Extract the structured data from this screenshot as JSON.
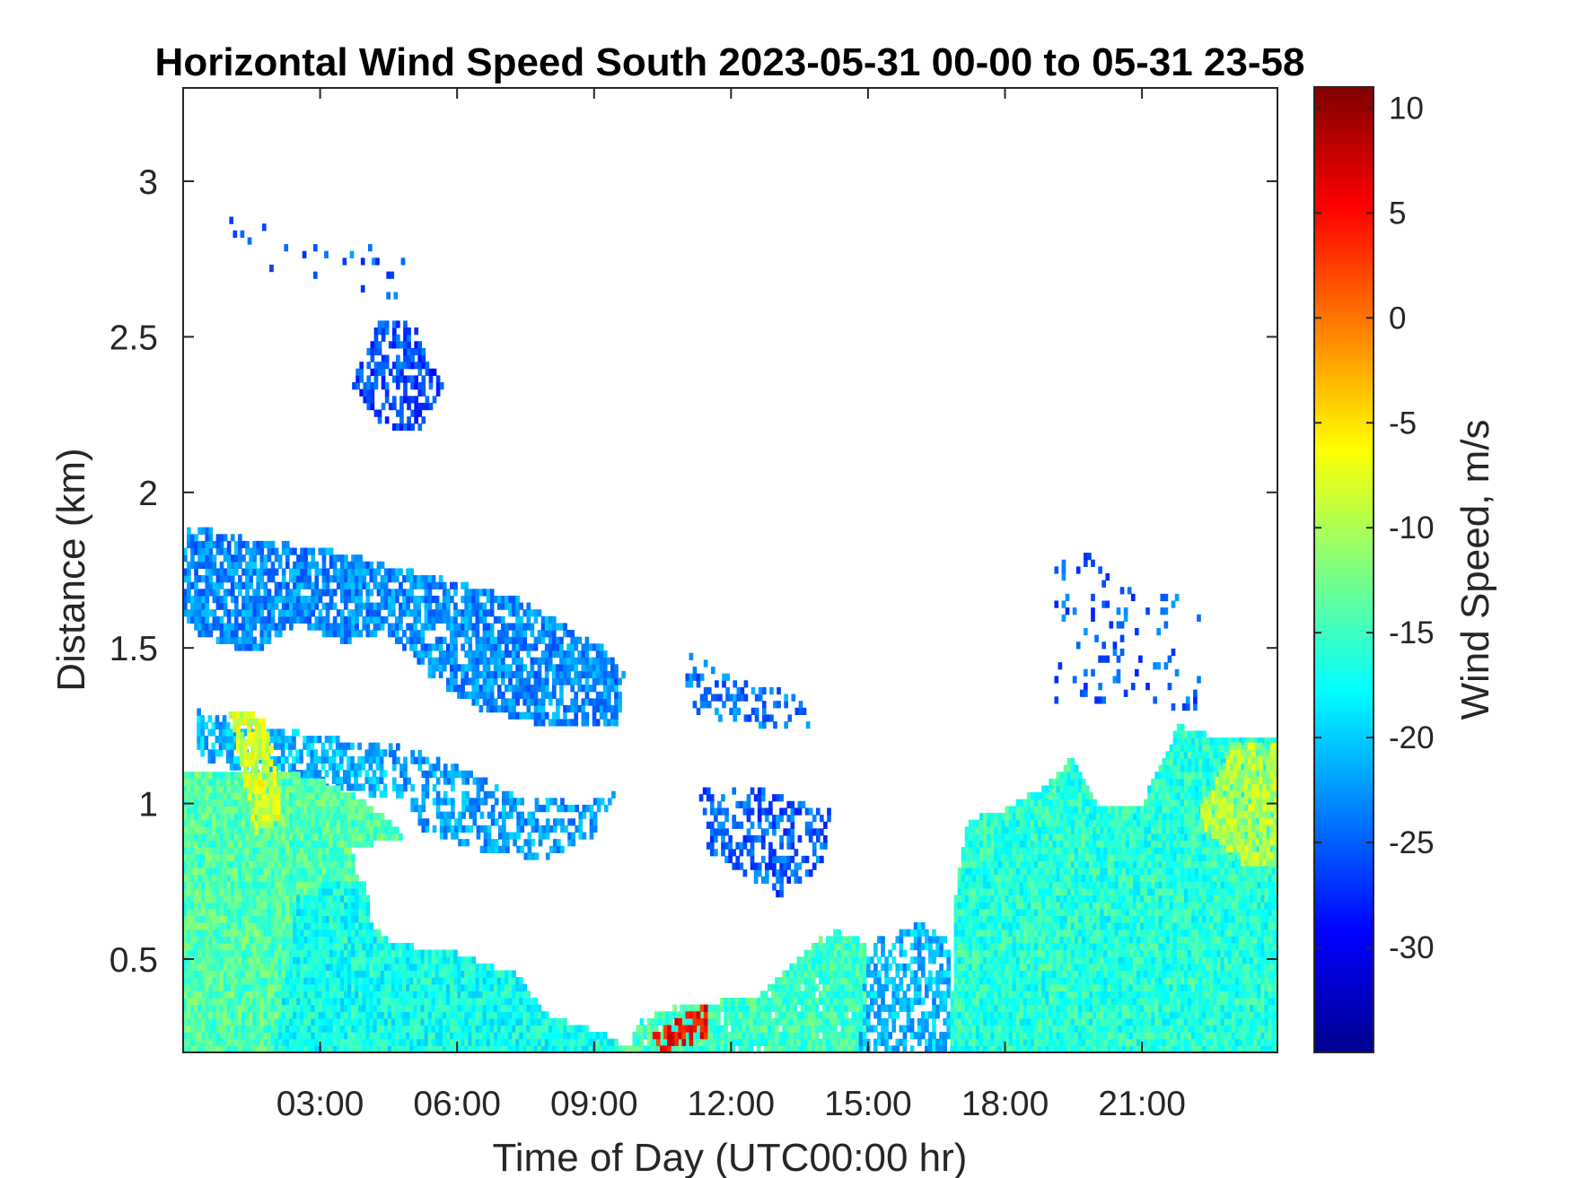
{
  "chart_data": {
    "type": "heatmap",
    "title": "Horizontal Wind Speed South 2023-05-31 00-00 to 05-31 23-58",
    "xlabel": "Time of Day (UTC00:00 hr)",
    "ylabel": "Distance (km)",
    "xlim": [
      "2023-05-31 00:00",
      "2023-05-31 23:58"
    ],
    "ylim": [
      0.2,
      3.3
    ],
    "x_ticks": [
      "03:00",
      "06:00",
      "09:00",
      "12:00",
      "15:00",
      "18:00",
      "21:00"
    ],
    "x_tick_hours": [
      3,
      6,
      9,
      12,
      15,
      18,
      21
    ],
    "y_ticks": [
      "0.5",
      "1",
      "1.5",
      "2",
      "2.5",
      "3"
    ],
    "y_tick_values": [
      0.5,
      1,
      1.5,
      2,
      2.5,
      3
    ],
    "colormap": "jet",
    "colorbar": {
      "label": "Wind Speed, m/s",
      "clim": [
        -35,
        11
      ],
      "ticks": [
        "10",
        "5",
        "0",
        "-5",
        "-10",
        "-15",
        "-20",
        "-25",
        "-30"
      ],
      "tick_values": [
        10,
        5,
        0,
        -5,
        -10,
        -15,
        -20,
        -25,
        -30
      ]
    },
    "regions": [
      {
        "name": "upper-scatter-0000-0500",
        "value": -25,
        "density": 0.06,
        "poly": [
          [
            0.05,
            3.0
          ],
          [
            1.0,
            2.9
          ],
          [
            2.2,
            2.85
          ],
          [
            3.2,
            2.8
          ],
          [
            5.0,
            2.8
          ],
          [
            5.2,
            2.65
          ],
          [
            4.5,
            2.6
          ],
          [
            2.0,
            2.7
          ],
          [
            0.5,
            2.85
          ],
          [
            0.05,
            2.9
          ]
        ]
      },
      {
        "name": "cloud-2.4km-0400",
        "value": -26,
        "density": 0.55,
        "poly": [
          [
            3.7,
            2.35
          ],
          [
            4.3,
            2.55
          ],
          [
            5.0,
            2.55
          ],
          [
            5.7,
            2.35
          ],
          [
            5.2,
            2.2
          ],
          [
            4.4,
            2.2
          ]
        ]
      },
      {
        "name": "layer-1.6km-0000-0940",
        "value": -23,
        "density": 0.78,
        "poly": [
          [
            0.0,
            1.9
          ],
          [
            1.5,
            1.85
          ],
          [
            3.0,
            1.82
          ],
          [
            5.0,
            1.75
          ],
          [
            7.5,
            1.65
          ],
          [
            9.2,
            1.5
          ],
          [
            9.7,
            1.42
          ],
          [
            9.5,
            1.25
          ],
          [
            8.0,
            1.25
          ],
          [
            6.5,
            1.3
          ],
          [
            5.5,
            1.4
          ],
          [
            4.5,
            1.55
          ],
          [
            3.5,
            1.52
          ],
          [
            2.5,
            1.58
          ],
          [
            1.5,
            1.48
          ],
          [
            0.3,
            1.55
          ],
          [
            0.0,
            1.6
          ]
        ]
      },
      {
        "name": "band-1.1km-0430-0930",
        "value": -22,
        "density": 0.55,
        "poly": [
          [
            4.5,
            1.2
          ],
          [
            6.0,
            1.12
          ],
          [
            7.5,
            1.02
          ],
          [
            8.8,
            1.0
          ],
          [
            9.5,
            1.05
          ],
          [
            9.0,
            0.9
          ],
          [
            8.0,
            0.82
          ],
          [
            6.5,
            0.85
          ],
          [
            5.2,
            0.92
          ],
          [
            4.6,
            1.05
          ]
        ]
      },
      {
        "name": "band-1.1km-0000-0430",
        "value": -21,
        "density": 0.7,
        "poly": [
          [
            0.3,
            1.3
          ],
          [
            1.5,
            1.25
          ],
          [
            3.0,
            1.22
          ],
          [
            4.5,
            1.18
          ],
          [
            4.5,
            1.02
          ],
          [
            3.0,
            1.05
          ],
          [
            1.5,
            1.1
          ],
          [
            0.3,
            1.15
          ]
        ]
      },
      {
        "name": "patch-1.35km-1200",
        "value": -24,
        "density": 0.35,
        "poly": [
          [
            11.0,
            1.5
          ],
          [
            12.0,
            1.4
          ],
          [
            13.5,
            1.35
          ],
          [
            13.8,
            1.22
          ],
          [
            12.5,
            1.25
          ],
          [
            11.0,
            1.3
          ]
        ]
      },
      {
        "name": "patch-0.9km-1230",
        "value": -25,
        "density": 0.5,
        "poly": [
          [
            11.3,
            1.05
          ],
          [
            12.5,
            1.05
          ],
          [
            14.2,
            0.98
          ],
          [
            14.0,
            0.8
          ],
          [
            13.0,
            0.7
          ],
          [
            11.5,
            0.85
          ]
        ]
      },
      {
        "name": "scatter-1.7km-1900",
        "value": -25,
        "density": 0.1,
        "poly": [
          [
            19.0,
            1.85
          ],
          [
            21.5,
            1.7
          ],
          [
            22.3,
            1.6
          ],
          [
            22.3,
            1.3
          ],
          [
            19.0,
            1.3
          ]
        ]
      },
      {
        "name": "surface-0000-0230",
        "value": -14,
        "density": 1.0,
        "poly": [
          [
            0.0,
            0.2
          ],
          [
            4.5,
            0.2
          ],
          [
            4.2,
            0.5
          ],
          [
            3.7,
            0.85
          ],
          [
            4.4,
            0.88
          ],
          [
            4.9,
            0.88
          ],
          [
            4.5,
            0.95
          ],
          [
            3.8,
            1.02
          ],
          [
            3.0,
            1.08
          ],
          [
            2.2,
            1.1
          ],
          [
            1.0,
            1.1
          ],
          [
            0.0,
            1.1
          ]
        ]
      },
      {
        "name": "surface-0230-1000",
        "value": -17,
        "density": 1.0,
        "poly": [
          [
            2.0,
            0.2
          ],
          [
            10.0,
            0.2
          ],
          [
            9.2,
            0.26
          ],
          [
            8.0,
            0.32
          ],
          [
            7.3,
            0.45
          ],
          [
            6.0,
            0.52
          ],
          [
            4.6,
            0.55
          ],
          [
            4.1,
            0.62
          ],
          [
            4.0,
            0.75
          ],
          [
            3.2,
            0.75
          ],
          [
            2.5,
            0.7
          ]
        ]
      },
      {
        "name": "surface-1000-1500",
        "value": -15,
        "density": 0.95,
        "poly": [
          [
            9.6,
            0.2
          ],
          [
            15.0,
            0.2
          ],
          [
            15.0,
            0.55
          ],
          [
            14.2,
            0.6
          ],
          [
            13.5,
            0.5
          ],
          [
            12.5,
            0.37
          ],
          [
            11.0,
            0.36
          ],
          [
            10.0,
            0.3
          ]
        ]
      },
      {
        "name": "surface-1500-1700-striated",
        "value": -21,
        "density": 0.6,
        "poly": [
          [
            14.8,
            0.2
          ],
          [
            16.8,
            0.2
          ],
          [
            16.8,
            0.55
          ],
          [
            16.2,
            0.62
          ],
          [
            15.5,
            0.58
          ],
          [
            15.0,
            0.55
          ]
        ]
      },
      {
        "name": "surface-1700-2400",
        "value": -16,
        "density": 1.0,
        "poly": [
          [
            16.8,
            0.2
          ],
          [
            24.0,
            0.2
          ],
          [
            24.0,
            1.22
          ],
          [
            22.5,
            1.22
          ],
          [
            21.8,
            1.25
          ],
          [
            21.0,
            1.0
          ],
          [
            20.0,
            1.0
          ],
          [
            19.5,
            1.15
          ],
          [
            18.8,
            1.05
          ],
          [
            18.0,
            0.98
          ],
          [
            17.2,
            0.95
          ],
          [
            16.9,
            0.7
          ]
        ]
      },
      {
        "name": "jet-2200-2330",
        "value": -10,
        "density": 0.9,
        "poly": [
          [
            22.2,
            0.95
          ],
          [
            23.0,
            1.2
          ],
          [
            24.0,
            1.2
          ],
          [
            24.0,
            0.8
          ],
          [
            23.2,
            0.8
          ]
        ]
      },
      {
        "name": "jet-0100-0200",
        "value": -8,
        "density": 0.9,
        "poly": [
          [
            1.0,
            1.3
          ],
          [
            1.8,
            1.28
          ],
          [
            2.2,
            0.95
          ],
          [
            1.6,
            0.9
          ]
        ]
      },
      {
        "name": "hot-1000-1130",
        "value": 5,
        "density": 0.7,
        "poly": [
          [
            10.2,
            0.25
          ],
          [
            11.5,
            0.36
          ],
          [
            11.5,
            0.25
          ],
          [
            10.4,
            0.2
          ]
        ]
      }
    ]
  }
}
